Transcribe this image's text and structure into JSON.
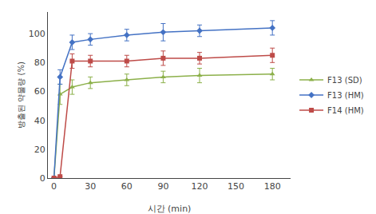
{
  "chart_data": {
    "type": "line",
    "x": [
      0,
      5,
      15,
      30,
      60,
      90,
      120,
      180
    ],
    "xlabel": "시간 (min)",
    "ylabel": "방출된 약물량 (%)",
    "xlim": [
      -5,
      195
    ],
    "xticks": [
      0,
      30,
      60,
      90,
      120,
      150,
      180
    ],
    "ylim": [
      0,
      115
    ],
    "yticks": [
      0,
      20,
      40,
      60,
      80,
      100
    ],
    "grid": false,
    "legend": "right",
    "series": [
      {
        "name": "F13 (SD)",
        "color": "#8cb04a",
        "marker": "triangle-up",
        "values": [
          0,
          58,
          63,
          66,
          68,
          70,
          71,
          72
        ],
        "errors": [
          0,
          7,
          5,
          4,
          4,
          4,
          5,
          4
        ]
      },
      {
        "name": "F13 (HM)",
        "color": "#4472c4",
        "marker": "diamond",
        "values": [
          0,
          70,
          94,
          96,
          99,
          101,
          102,
          104
        ],
        "errors": [
          0,
          5,
          5,
          4,
          4,
          6,
          4,
          5
        ]
      },
      {
        "name": "F14 (HM)",
        "color": "#be4b48",
        "marker": "square",
        "values": [
          0,
          1,
          81,
          81,
          81,
          83,
          83,
          85
        ],
        "errors": [
          0,
          0,
          5,
          4,
          4,
          5,
          4,
          5
        ]
      }
    ]
  }
}
